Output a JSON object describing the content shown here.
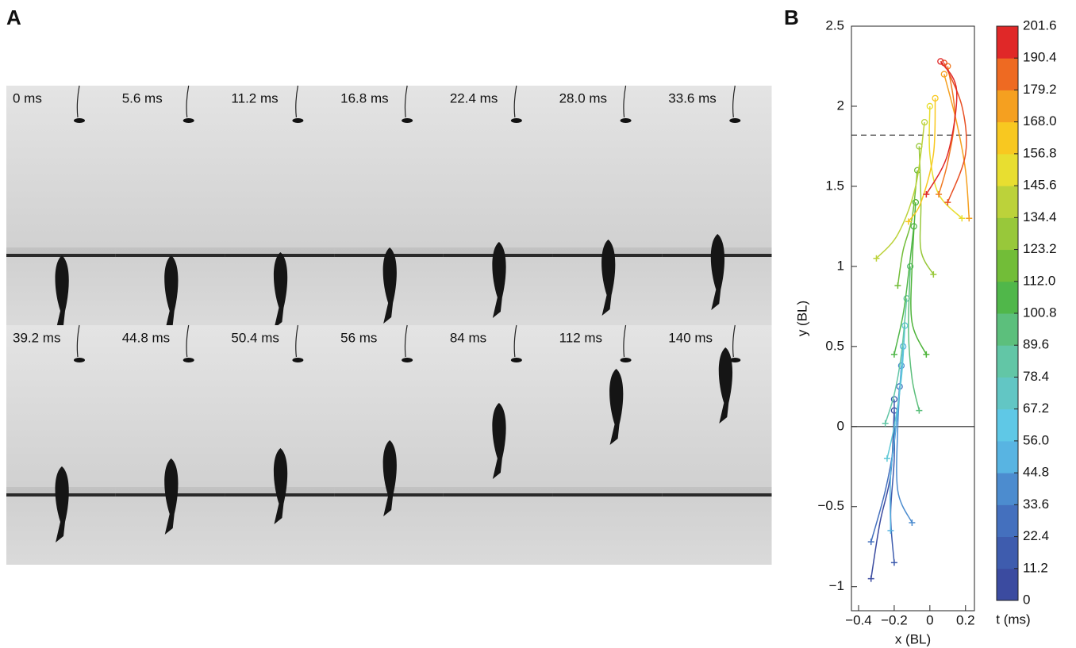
{
  "panel_a": {
    "label": "A",
    "frames": [
      "0 ms",
      "5.6 ms",
      "11.2 ms",
      "16.8 ms",
      "22.4 ms",
      "28.0 ms",
      "33.6 ms",
      "39.2 ms",
      "44.8 ms",
      "50.4 ms",
      "56 ms",
      "84 ms",
      "112 ms",
      "140 ms"
    ]
  },
  "panel_b": {
    "label": "B"
  },
  "chart_data": {
    "type": "line",
    "xlabel": "x (BL)",
    "ylabel": "y (BL)",
    "xlim": [
      -0.44,
      0.25
    ],
    "ylim": [
      -1.15,
      2.5
    ],
    "xticks": [
      {
        "value": -0.4,
        "label": "−0.4"
      },
      {
        "value": -0.2,
        "label": "−0.2"
      },
      0,
      0.2
    ],
    "yticks": [
      {
        "value": -1,
        "label": "−1"
      },
      {
        "value": -0.5,
        "label": "−0.5"
      },
      0,
      0.5,
      1,
      1.5,
      2,
      2.5
    ],
    "reference_lines": [
      {
        "y": 0,
        "dashed": false
      },
      {
        "y": 1.82,
        "dashed": true
      }
    ],
    "series": [
      {
        "color": "#3b4ba0",
        "x": [
          -0.2,
          -0.22,
          -0.28,
          -0.33
        ],
        "y": [
          0.1,
          -0.3,
          -0.6,
          -0.95
        ]
      },
      {
        "color": "#3e5cae",
        "x": [
          -0.2,
          -0.2,
          -0.22,
          -0.2
        ],
        "y": [
          0.17,
          -0.2,
          -0.55,
          -0.85
        ]
      },
      {
        "color": "#4470be",
        "x": [
          -0.17,
          -0.2,
          -0.25,
          -0.33
        ],
        "y": [
          0.25,
          -0.1,
          -0.4,
          -0.72
        ]
      },
      {
        "color": "#4c8ccf",
        "x": [
          -0.16,
          -0.18,
          -0.18,
          -0.1
        ],
        "y": [
          0.38,
          0,
          -0.4,
          -0.6
        ]
      },
      {
        "color": "#58b4e2",
        "x": [
          -0.15,
          -0.18,
          -0.22,
          -0.22
        ],
        "y": [
          0.5,
          0.1,
          -0.3,
          -0.65
        ]
      },
      {
        "color": "#5fc8d6",
        "x": [
          -0.14,
          -0.16,
          -0.2,
          -0.24
        ],
        "y": [
          0.63,
          0.3,
          0,
          -0.2
        ]
      },
      {
        "color": "#62c6a6",
        "x": [
          -0.13,
          -0.16,
          -0.2,
          -0.25
        ],
        "y": [
          0.8,
          0.45,
          0.2,
          0.02
        ]
      },
      {
        "color": "#5cbf7c",
        "x": [
          -0.11,
          -0.12,
          -0.1,
          -0.06
        ],
        "y": [
          1.0,
          0.6,
          0.3,
          0.1
        ]
      },
      {
        "color": "#50b74a",
        "x": [
          -0.09,
          -0.12,
          -0.15,
          -0.2
        ],
        "y": [
          1.25,
          0.95,
          0.7,
          0.45
        ]
      },
      {
        "color": "#4eb43a",
        "x": [
          -0.08,
          -0.1,
          -0.1,
          -0.02
        ],
        "y": [
          1.4,
          1.0,
          0.65,
          0.45
        ]
      },
      {
        "color": "#72bd38",
        "x": [
          -0.07,
          -0.1,
          -0.15,
          -0.18
        ],
        "y": [
          1.6,
          1.3,
          1.1,
          0.88
        ]
      },
      {
        "color": "#98c83a",
        "x": [
          -0.06,
          -0.05,
          -0.05,
          0.02
        ],
        "y": [
          1.75,
          1.4,
          1.1,
          0.95
        ]
      },
      {
        "color": "#bcd23a",
        "x": [
          -0.03,
          -0.08,
          -0.18,
          -0.3
        ],
        "y": [
          1.9,
          1.5,
          1.2,
          1.05
        ]
      },
      {
        "color": "#e8de30",
        "x": [
          0,
          0,
          0.05,
          0.18
        ],
        "y": [
          2.0,
          1.7,
          1.45,
          1.3
        ]
      },
      {
        "color": "#f8c820",
        "x": [
          0.03,
          0.02,
          -0.05,
          -0.12
        ],
        "y": [
          2.05,
          1.7,
          1.4,
          1.28
        ]
      },
      {
        "color": "#f5a020",
        "x": [
          0.08,
          0.15,
          0.2,
          0.22
        ],
        "y": [
          2.2,
          1.9,
          1.6,
          1.3
        ]
      },
      {
        "color": "#f07a22",
        "x": [
          0.1,
          0.14,
          0.1,
          0.05
        ],
        "y": [
          2.25,
          1.95,
          1.65,
          1.45
        ]
      },
      {
        "color": "#e85024",
        "x": [
          0.08,
          0.18,
          0.2,
          0.1
        ],
        "y": [
          2.27,
          2.0,
          1.7,
          1.4
        ]
      },
      {
        "color": "#e02828",
        "x": [
          0.06,
          0.15,
          0.1,
          -0.02
        ],
        "y": [
          2.28,
          2.1,
          1.7,
          1.45
        ]
      }
    ],
    "colorbar": {
      "label": "t (ms)",
      "lim": [
        0,
        201.6
      ],
      "ticks": [
        0,
        11.2,
        22.4,
        33.6,
        44.8,
        {
          "value": 56,
          "label": "56.0"
        },
        67.2,
        78.4,
        89.6,
        100.8,
        {
          "value": 112,
          "label": "112.0"
        },
        123.2,
        134.4,
        145.6,
        156.8,
        {
          "value": 168,
          "label": "168.0"
        },
        179.2,
        190.4,
        201.6
      ],
      "colors": [
        "#3b4ba0",
        "#3e5cae",
        "#4470be",
        "#4c8ccf",
        "#58b4e2",
        "#5fc8e6",
        "#62c6c4",
        "#62c6a6",
        "#5cbf7c",
        "#50b74a",
        "#72bd38",
        "#98c83a",
        "#bcd23a",
        "#e8de30",
        "#f8c820",
        "#f5a020",
        "#ee6a22",
        "#e02828"
      ]
    }
  }
}
